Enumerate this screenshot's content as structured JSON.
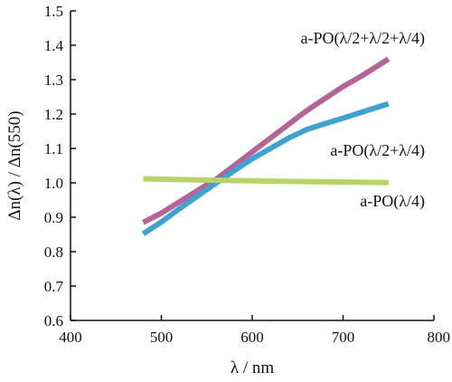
{
  "chart_data": {
    "type": "line",
    "title": "",
    "xlabel": "λ / nm",
    "ylabel": "Δn(λ) / Δn(550)",
    "xlim": [
      400,
      800
    ],
    "ylim": [
      0.6,
      1.5
    ],
    "xticks": [
      400,
      500,
      600,
      700,
      800
    ],
    "yticks": [
      0.6,
      0.7,
      0.8,
      0.9,
      1.0,
      1.1,
      1.2,
      1.3,
      1.4,
      1.5
    ],
    "xtick_labels": [
      "400",
      "500",
      "600",
      "700",
      "800"
    ],
    "ytick_labels": [
      "0.6",
      "0.7",
      "0.8",
      "0.9",
      "1.0",
      "1.1",
      "1.2",
      "1.3",
      "1.4",
      "1.5"
    ],
    "grid": false,
    "series": [
      {
        "name": "a-PO(λ/2+λ/2+λ/4)",
        "color": "#b5649a",
        "x": [
          480,
          500,
          520,
          540,
          560,
          580,
          600,
          620,
          640,
          660,
          680,
          700,
          720,
          750
        ],
        "y": [
          0.885,
          0.912,
          0.945,
          0.978,
          1.01,
          1.05,
          1.09,
          1.13,
          1.17,
          1.21,
          1.245,
          1.28,
          1.31,
          1.36
        ]
      },
      {
        "name": "a-PO(λ/2+λ/4)",
        "color": "#3fa3cf",
        "x": [
          480,
          500,
          520,
          540,
          560,
          580,
          600,
          620,
          640,
          660,
          680,
          700,
          720,
          750
        ],
        "y": [
          0.852,
          0.886,
          0.925,
          0.962,
          0.999,
          1.035,
          1.07,
          1.1,
          1.13,
          1.155,
          1.172,
          1.188,
          1.205,
          1.23
        ]
      },
      {
        "name": "a-PO(λ/4)",
        "color": "#b9d36a",
        "x": [
          480,
          550,
          650,
          750
        ],
        "y": [
          1.012,
          1.008,
          1.004,
          1.001
        ]
      }
    ]
  }
}
